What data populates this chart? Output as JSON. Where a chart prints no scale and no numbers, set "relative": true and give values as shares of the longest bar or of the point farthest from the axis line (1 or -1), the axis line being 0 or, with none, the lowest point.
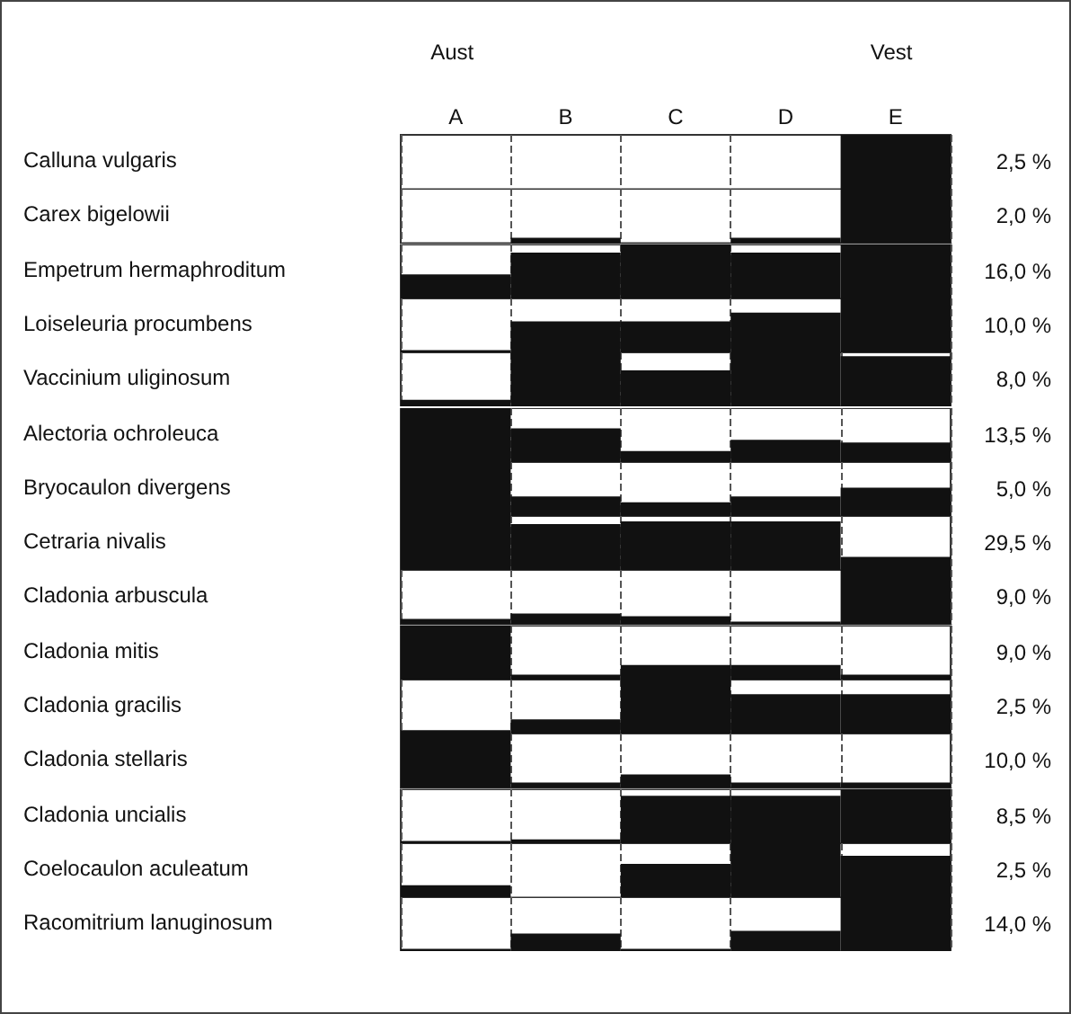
{
  "chart_data": [
    {
      "type": "bar",
      "categories": [
        "A",
        "B",
        "C",
        "D",
        "E"
      ],
      "values": [
        0,
        0,
        0,
        0,
        1
      ],
      "relative": true,
      "color": "#111111",
      "ylabel": "Calluna vulgaris",
      "annotations": [
        "Aust",
        "Vest",
        "2,5 %"
      ],
      "tick_labels": "x",
      "grid": "x"
    },
    {
      "type": "bar",
      "categories": [
        null,
        null,
        null,
        null,
        null
      ],
      "values": [
        0,
        0.1,
        0,
        0.1,
        1
      ],
      "relative": true,
      "color": "#111111",
      "ylabel": "Carex bigelowii",
      "annotations": [
        "2,0 %"
      ],
      "tick_labels": false,
      "grid": "x"
    },
    {
      "type": "bar",
      "categories": [
        null,
        null,
        null,
        null,
        null
      ],
      "values": [
        0.45,
        0.85,
        1,
        0.85,
        1
      ],
      "relative": true,
      "color": "#111111",
      "ylabel": "Empetrum hermaphroditum",
      "annotations": [
        "16,0 %"
      ],
      "tick_labels": false,
      "grid": "x"
    },
    {
      "type": "bar",
      "categories": [
        null,
        null,
        null,
        null,
        null
      ],
      "values": [
        0.05,
        0.58,
        0.58,
        0.74,
        1
      ],
      "relative": true,
      "color": "#111111",
      "ylabel": "Loiseleuria procumbens",
      "annotations": [
        "10,0 %"
      ],
      "tick_labels": false,
      "grid": "x"
    },
    {
      "type": "bar",
      "categories": [
        null,
        null,
        null,
        null,
        null
      ],
      "values": [
        0.13,
        1,
        0.67,
        1,
        0.93
      ],
      "relative": true,
      "color": "#111111",
      "ylabel": "Vaccinium uliginosum",
      "annotations": [
        "8,0 %"
      ],
      "tick_labels": false,
      "grid": "x"
    },
    {
      "type": "bar",
      "categories": [
        null,
        null,
        null,
        null,
        null
      ],
      "values": [
        1,
        0.63,
        0.21,
        0.42,
        0.37
      ],
      "relative": true,
      "color": "#111111",
      "ylabel": "Alectoria ochroleuca",
      "annotations": [
        "13,5 %"
      ],
      "tick_labels": false,
      "grid": "x"
    },
    {
      "type": "bar",
      "categories": [
        null,
        null,
        null,
        null,
        null
      ],
      "values": [
        1,
        0.37,
        0.26,
        0.37,
        0.53
      ],
      "relative": true,
      "color": "#111111",
      "ylabel": "Bryocaulon divergens",
      "annotations": [
        "5,0 %"
      ],
      "tick_labels": false,
      "grid": "x"
    },
    {
      "type": "bar",
      "categories": [
        null,
        null,
        null,
        null,
        null
      ],
      "values": [
        1,
        0.85,
        0.9,
        0.9,
        0.25
      ],
      "relative": true,
      "color": "#111111",
      "ylabel": "Cetraria nivalis",
      "annotations": [
        "29,5 %"
      ],
      "tick_labels": false,
      "grid": "x"
    },
    {
      "type": "bar",
      "categories": [
        null,
        null,
        null,
        null,
        null
      ],
      "values": [
        0.1,
        0.2,
        0.15,
        0.05,
        1
      ],
      "relative": true,
      "color": "#111111",
      "ylabel": "Cladonia arbuscula",
      "annotations": [
        "9,0 %"
      ],
      "tick_labels": false,
      "grid": "x"
    },
    {
      "type": "bar",
      "categories": [
        null,
        null,
        null,
        null,
        null
      ],
      "values": [
        1,
        0.1,
        0.28,
        0.28,
        0.1
      ],
      "relative": true,
      "color": "#111111",
      "ylabel": "Cladonia mitis",
      "annotations": [
        "9,0 %"
      ],
      "tick_labels": false,
      "grid": "x"
    },
    {
      "type": "bar",
      "categories": [
        null,
        null,
        null,
        null,
        null
      ],
      "values": [
        0.07,
        0.27,
        1,
        0.73,
        0.73
      ],
      "relative": true,
      "color": "#111111",
      "ylabel": "Cladonia gracilis",
      "annotations": [
        "2,5 %"
      ],
      "tick_labels": false,
      "grid": "x"
    },
    {
      "type": "bar",
      "categories": [
        null,
        null,
        null,
        null,
        null
      ],
      "values": [
        1,
        0.1,
        0.25,
        0.1,
        0.1
      ],
      "relative": true,
      "color": "#111111",
      "ylabel": "Cladonia stellaris",
      "annotations": [
        "10,0 %"
      ],
      "tick_labels": false,
      "grid": "x"
    },
    {
      "type": "bar",
      "categories": [
        null,
        null,
        null,
        null,
        null
      ],
      "values": [
        0.05,
        0.08,
        0.88,
        0.88,
        1
      ],
      "relative": true,
      "color": "#111111",
      "ylabel": "Cladonia uncialis",
      "annotations": [
        "8,5 %"
      ],
      "tick_labels": false,
      "grid": "x"
    },
    {
      "type": "bar",
      "categories": [
        null,
        null,
        null,
        null,
        null
      ],
      "values": [
        0.23,
        0,
        0.62,
        1,
        0.77
      ],
      "relative": true,
      "color": "#111111",
      "ylabel": "Coelocaulon aculeatum",
      "annotations": [
        "2,5 %"
      ],
      "tick_labels": false,
      "grid": "x"
    },
    {
      "type": "bar",
      "categories": [
        null,
        null,
        null,
        null,
        null
      ],
      "values": [
        0.05,
        0.33,
        0.05,
        0.38,
        1
      ],
      "relative": true,
      "color": "#111111",
      "ylabel": "Racomitrium lanuginosum",
      "annotations": [
        "14,0 %"
      ],
      "tick_labels": false,
      "grid": "x"
    }
  ]
}
